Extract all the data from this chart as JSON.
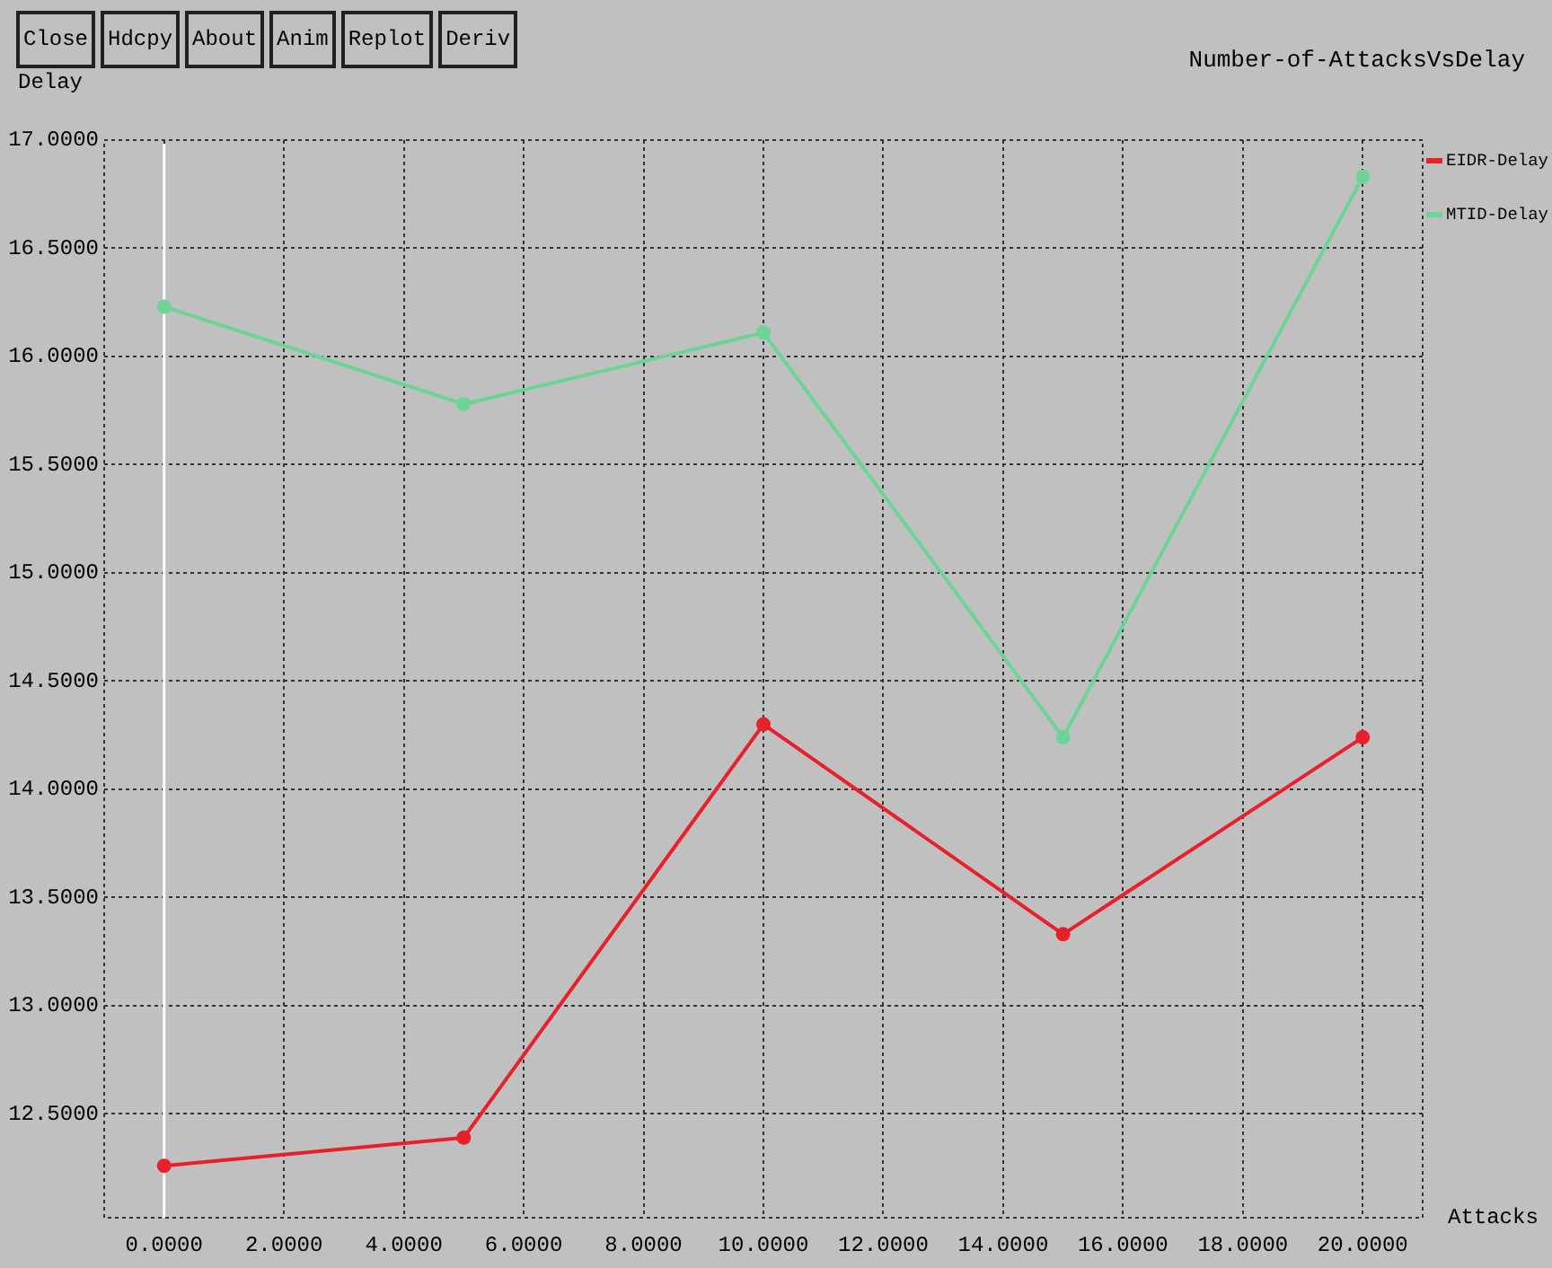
{
  "chart_data": {
    "type": "line",
    "title": "Number-of-AttacksVsDelay",
    "xlabel": "Attacks",
    "ylabel": "Delay",
    "annotations": [
      "Close",
      "Hdcpy",
      "About",
      "Anim",
      "Replot",
      "Deriv"
    ],
    "x": [
      0,
      5,
      10,
      15,
      20
    ],
    "series": [
      {
        "name": "EIDR-Delay",
        "color": "#e8202a",
        "values": [
          12.26,
          12.39,
          14.3,
          13.33,
          14.24
        ]
      },
      {
        "name": "MTID-Delay",
        "color": "#6cd596",
        "values": [
          16.23,
          15.78,
          16.11,
          14.24,
          16.83
        ]
      }
    ],
    "xlim": [
      -1,
      21
    ],
    "xticks": [
      {
        "value": 0,
        "label": "0.0000"
      },
      {
        "value": 2,
        "label": "2.0000"
      },
      {
        "value": 4,
        "label": "4.0000"
      },
      {
        "value": 6,
        "label": "6.0000"
      },
      {
        "value": 8,
        "label": "8.0000"
      },
      {
        "value": 10,
        "label": "10.0000"
      },
      {
        "value": 12,
        "label": "12.0000"
      },
      {
        "value": 14,
        "label": "14.0000"
      },
      {
        "value": 16,
        "label": "16.0000"
      },
      {
        "value": 18,
        "label": "18.0000"
      },
      {
        "value": 20,
        "label": "20.0000"
      }
    ],
    "ylim": [
      12.02,
      17
    ],
    "yticks": [
      {
        "value": 12.5,
        "label": "12.5000"
      },
      {
        "value": 13,
        "label": "13.0000"
      },
      {
        "value": 13.5,
        "label": "13.5000"
      },
      {
        "value": 14,
        "label": "14.0000"
      },
      {
        "value": 14.5,
        "label": "14.5000"
      },
      {
        "value": 15,
        "label": "15.0000"
      },
      {
        "value": 15.5,
        "label": "15.5000"
      },
      {
        "value": 16,
        "label": "16.0000"
      },
      {
        "value": 16.5,
        "label": "16.5000"
      },
      {
        "value": 17,
        "label": "17.0000"
      }
    ],
    "ref_lines": [
      {
        "axis": "x",
        "value": 0,
        "color": "#ffffff"
      }
    ],
    "grid": true,
    "legend": "top right",
    "marker": "circle"
  }
}
